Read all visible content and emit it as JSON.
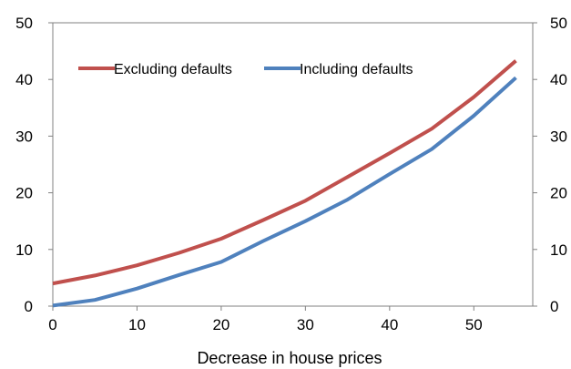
{
  "chart_data": {
    "type": "line",
    "title": "",
    "xlabel": "Decrease in house prices",
    "ylabel": "",
    "xlim": [
      0,
      57
    ],
    "ylim": [
      0,
      50
    ],
    "xticks": [
      0,
      10,
      20,
      30,
      40,
      50
    ],
    "xtick_labels": [
      "0",
      "10",
      "20",
      "30",
      "40",
      "50"
    ],
    "yticks": [
      0,
      10,
      20,
      30,
      40,
      50
    ],
    "ytick_labels": [
      "0",
      "10",
      "20",
      "30",
      "40",
      "50"
    ],
    "secondary_y_axis": true,
    "grid": false,
    "legend_position": "top-left, inside",
    "series": [
      {
        "name": "Excluding defaults",
        "color": "#C0504D",
        "x": [
          0,
          5,
          10,
          15,
          20,
          25,
          30,
          35,
          40,
          45,
          50,
          55
        ],
        "y": [
          4.0,
          5.4,
          7.2,
          9.4,
          11.9,
          15.2,
          18.6,
          22.8,
          27.0,
          31.3,
          36.9,
          43.3
        ]
      },
      {
        "name": "Including defaults",
        "color": "#4F81BD",
        "x": [
          0,
          5,
          10,
          15,
          20,
          25,
          30,
          35,
          40,
          45,
          50,
          55
        ],
        "y": [
          0.1,
          1.1,
          3.1,
          5.5,
          7.8,
          11.5,
          15.0,
          18.8,
          23.3,
          27.7,
          33.6,
          40.3
        ]
      }
    ]
  }
}
